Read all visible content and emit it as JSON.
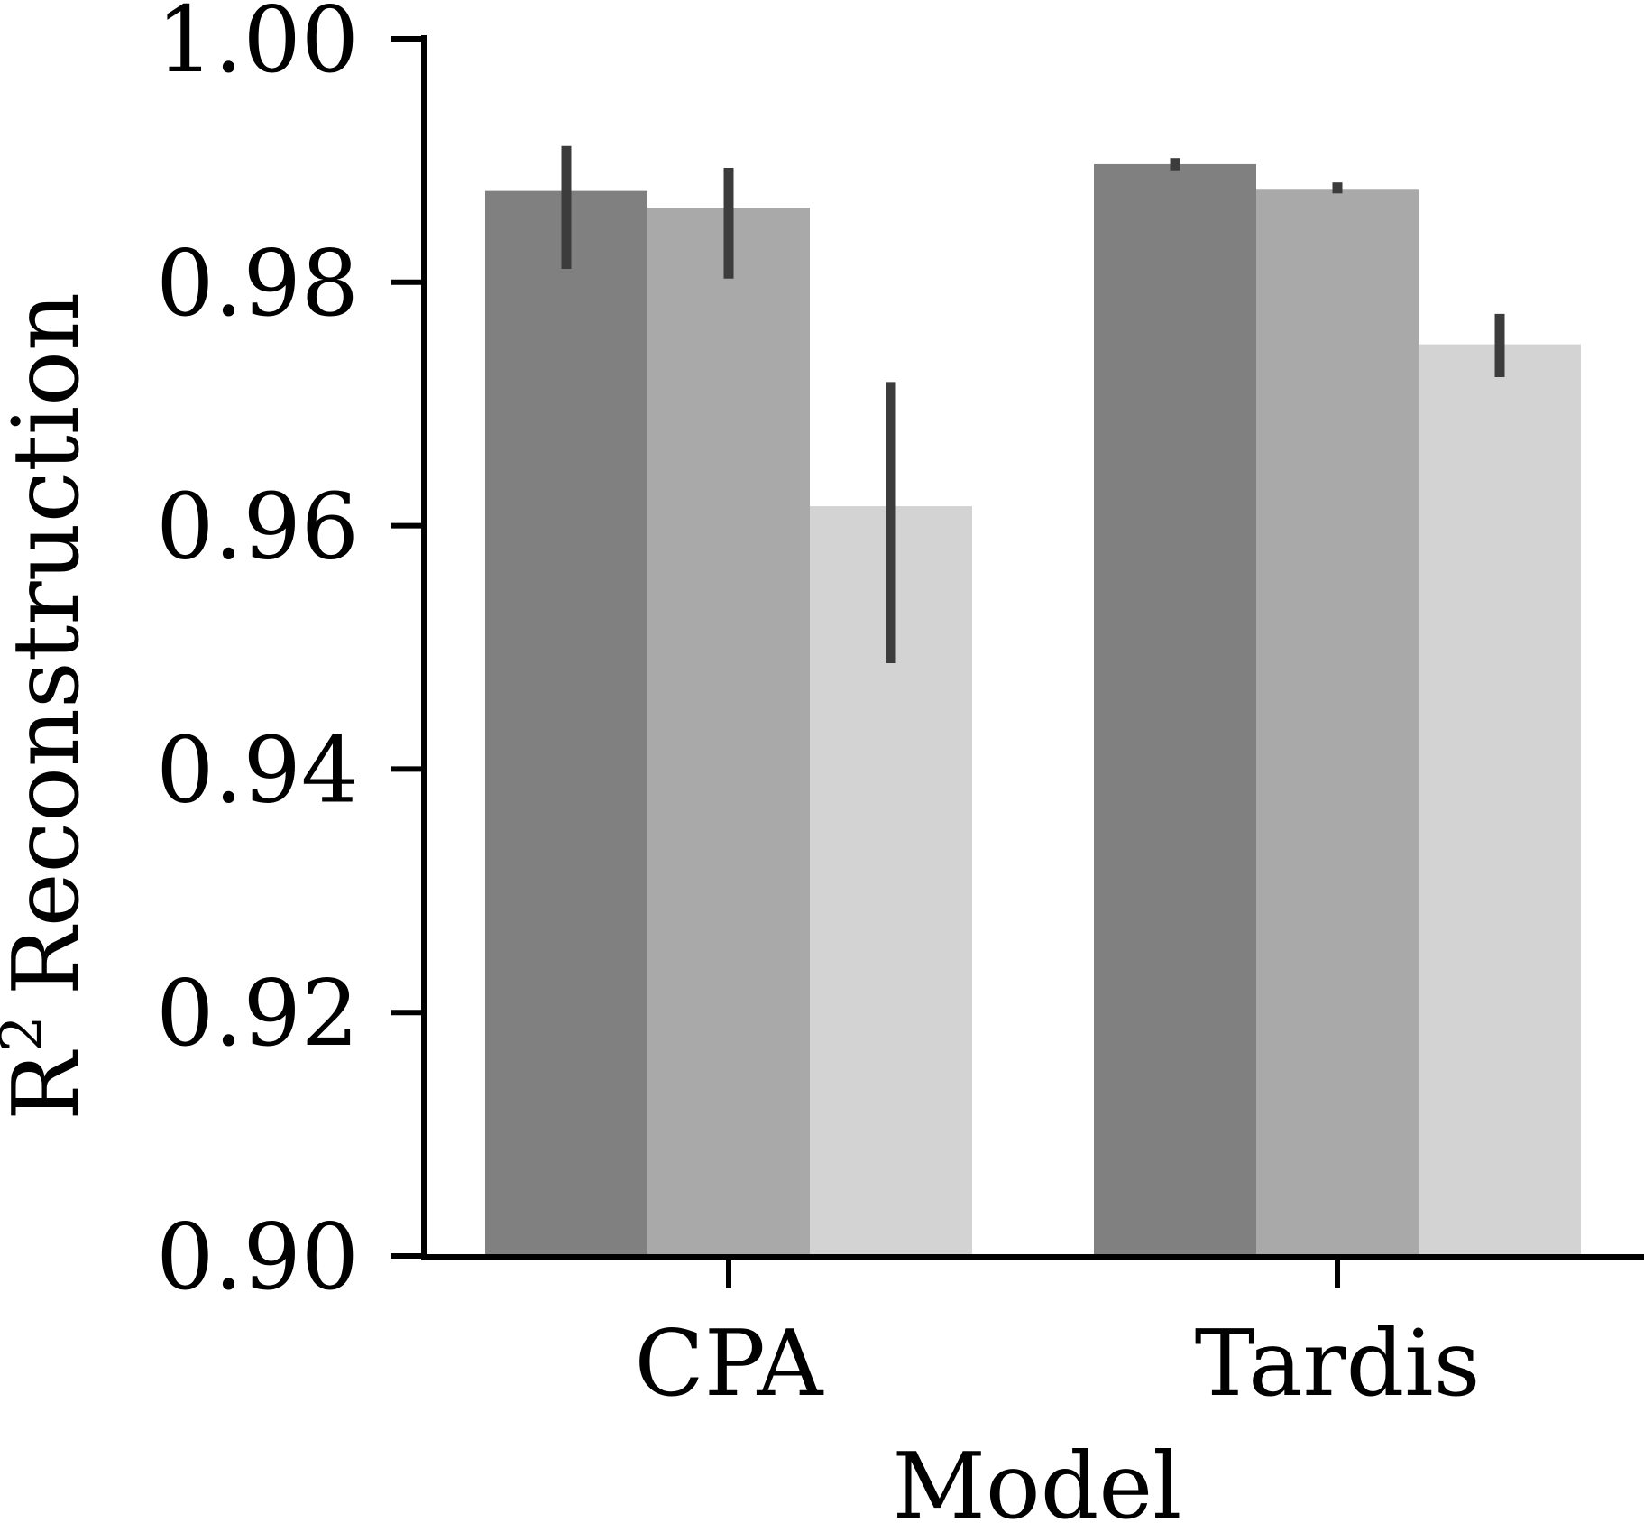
{
  "chart_data": {
    "type": "bar",
    "xlabel": "Model",
    "ylabel": {
      "base": "R",
      "superscript": "2",
      "rest": "Reconstruction"
    },
    "categories": [
      "CPA",
      "Tardis"
    ],
    "ylim": [
      0.9,
      1.0
    ],
    "yticks": [
      0.9,
      0.92,
      0.94,
      0.96,
      0.98,
      1.0
    ],
    "ytick_labels": [
      "0.90",
      "0.92",
      "0.94",
      "0.96",
      "0.98",
      "1.00"
    ],
    "grid": false,
    "legend": null,
    "series": [
      {
        "color": "#808080",
        "values": [
          0.9875,
          0.9897
        ],
        "error_low": [
          0.9811,
          0.9892
        ],
        "error_high": [
          0.9912,
          0.9902
        ]
      },
      {
        "color": "#a9a9a9",
        "values": [
          0.9861,
          0.9876
        ],
        "error_low": [
          0.9803,
          0.9873
        ],
        "error_high": [
          0.9894,
          0.9882
        ]
      },
      {
        "color": "#d3d3d3",
        "values": [
          0.9616,
          0.9749
        ],
        "error_low": [
          0.9487,
          0.9722
        ],
        "error_high": [
          0.9718,
          0.9774
        ]
      }
    ],
    "error_bar_color": "#3c3c3c",
    "axis_color": "#000000"
  }
}
